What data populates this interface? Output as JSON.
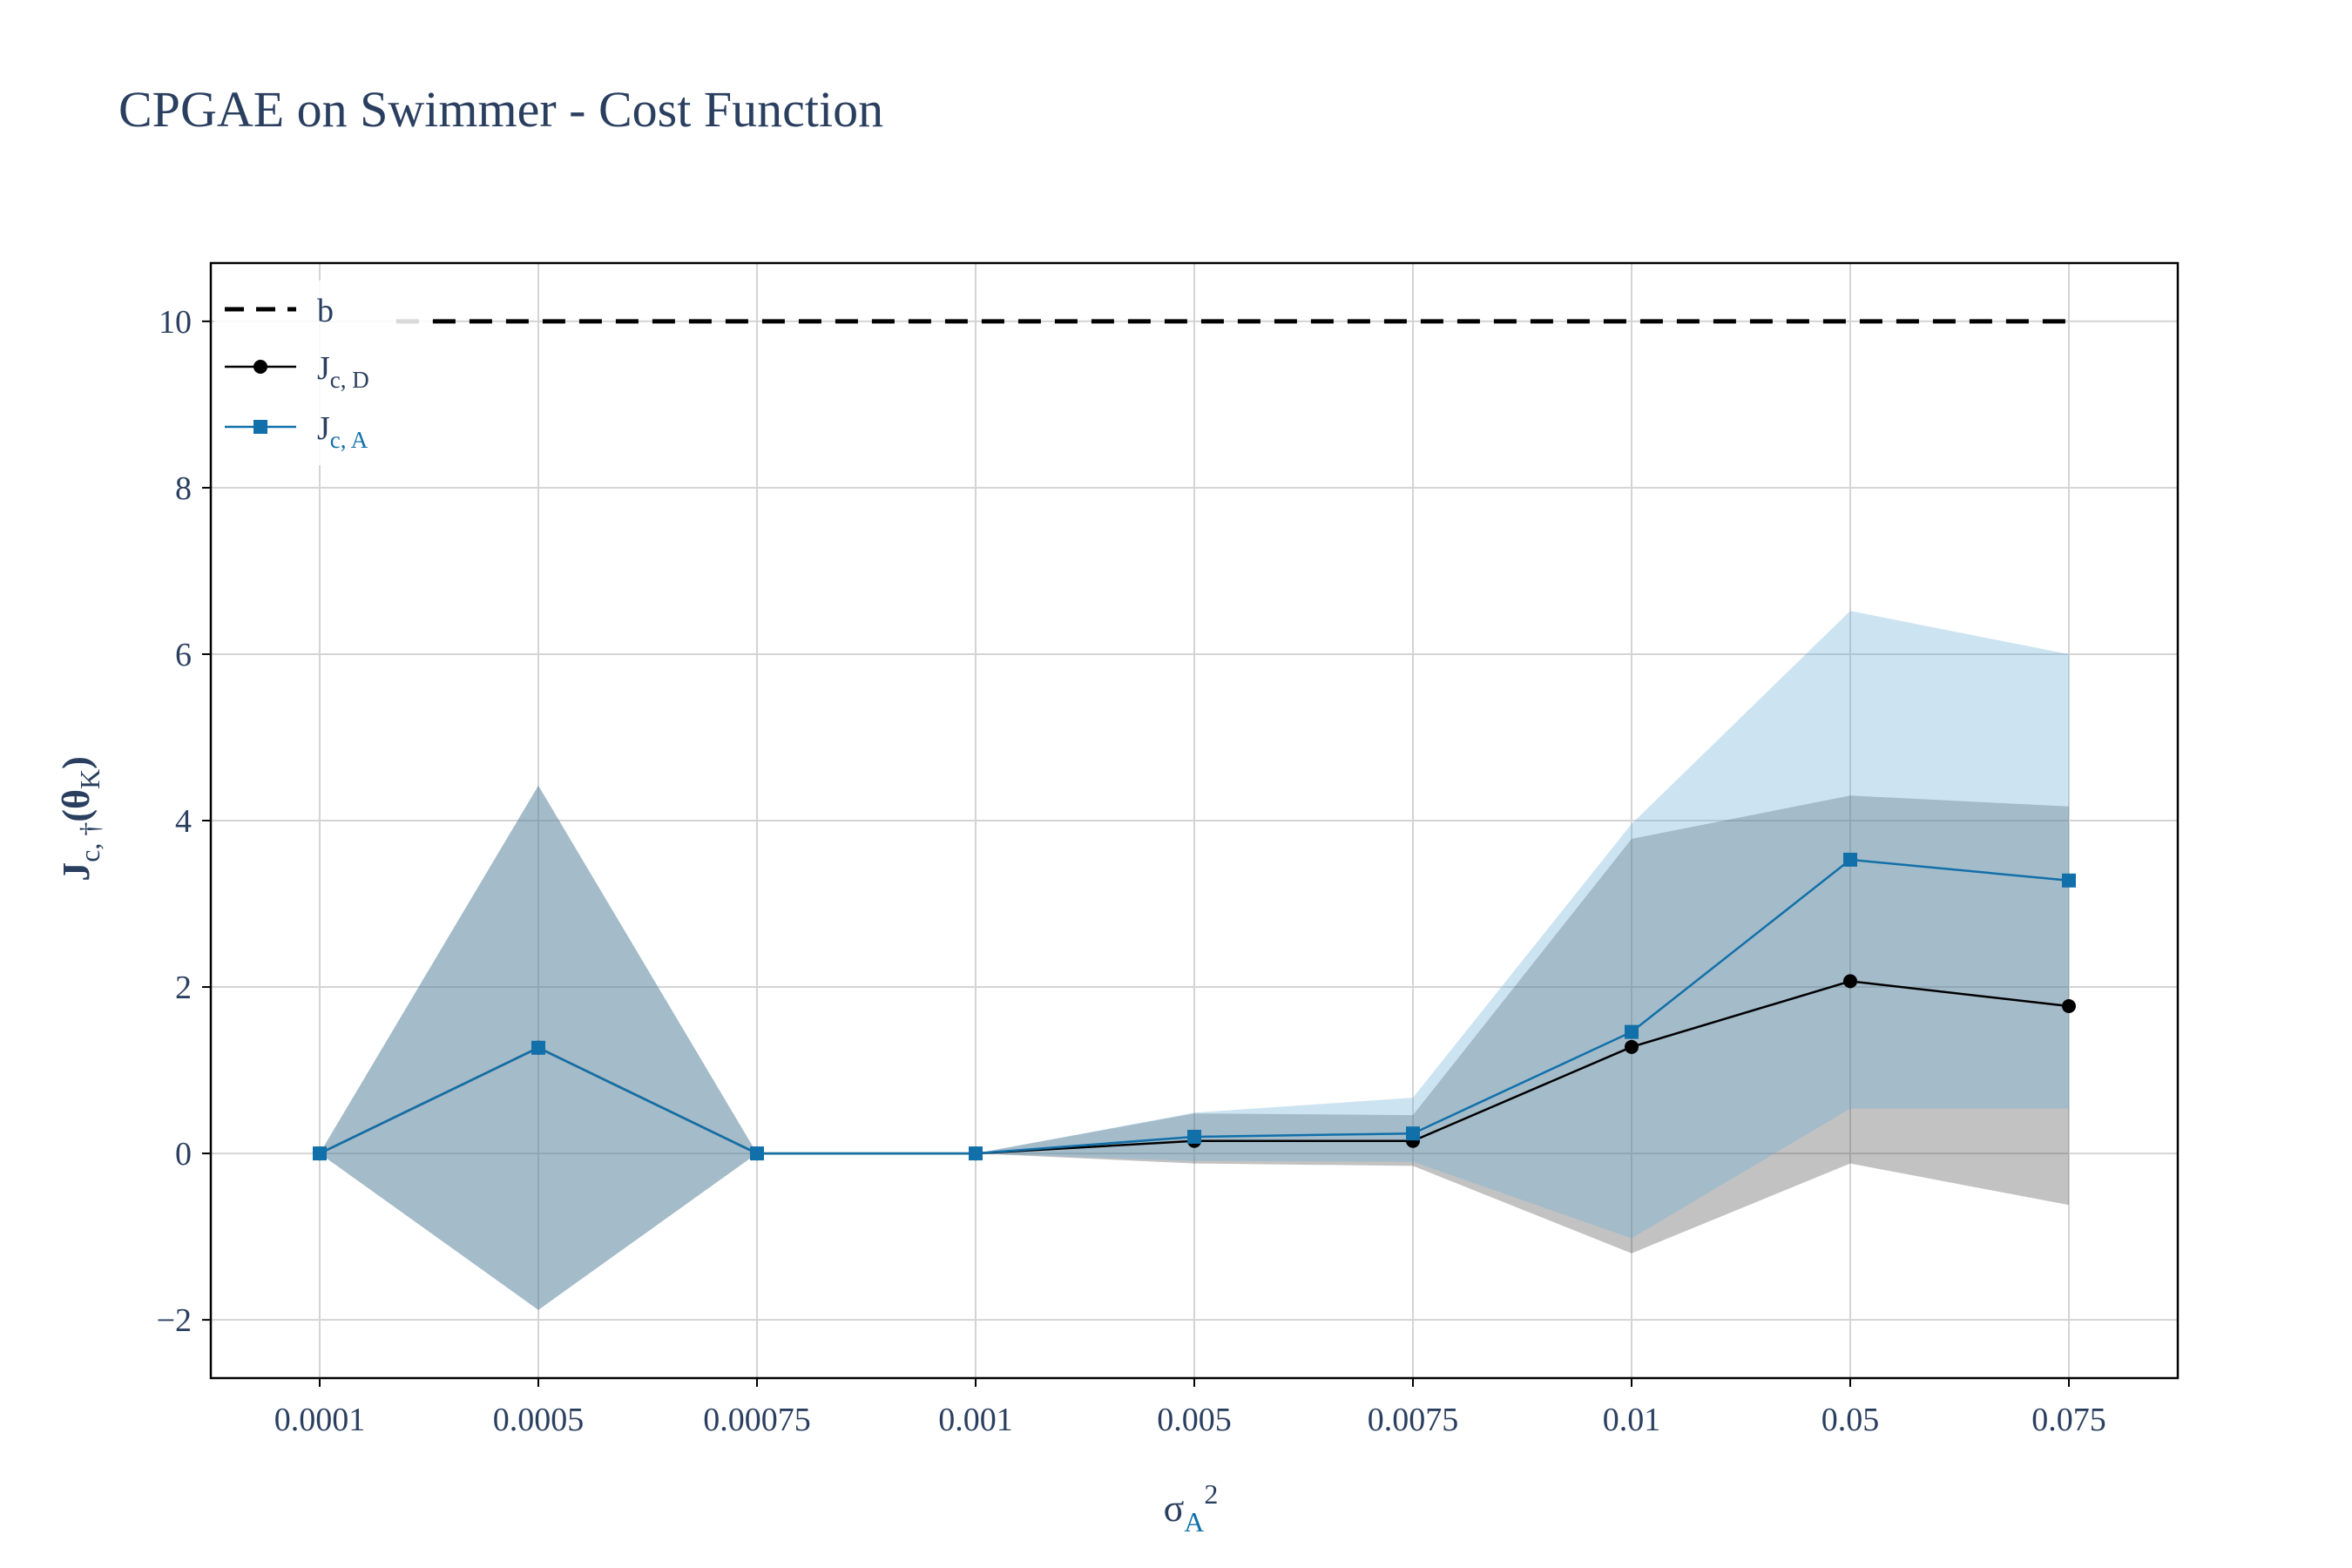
{
  "chart_data": {
    "type": "line",
    "title": "CPGAE on Swimmer - Cost Function",
    "xlabel": {
      "base": "σ",
      "sub": "A",
      "sup": "2"
    },
    "ylabel": {
      "base": "J",
      "sub": "c, †",
      "mid": "(θ",
      "sub2": "K",
      "end": ")"
    },
    "categories": [
      "0.0001",
      "0.0005",
      "0.00075",
      "0.001",
      "0.005",
      "0.0075",
      "0.01",
      "0.05",
      "0.075"
    ],
    "ylim": [
      -2.7,
      10.7
    ],
    "yticks": [
      -2,
      0,
      2,
      4,
      6,
      8,
      10
    ],
    "grid": true,
    "legend_position": "top-left",
    "series": [
      {
        "name": "b",
        "style": "dashed",
        "color": "#000000",
        "marker": "none",
        "values": [
          10,
          10,
          10,
          10,
          10,
          10,
          10,
          10,
          10
        ]
      },
      {
        "name_base": "J",
        "name_sub": "c, D",
        "style": "solid",
        "color": "#000000",
        "marker": "circle",
        "values": [
          0,
          1.27,
          0,
          0,
          0.15,
          0.15,
          1.28,
          2.07,
          1.77
        ],
        "band_upper": [
          0,
          4.42,
          0,
          0,
          0.48,
          0.46,
          3.78,
          4.3,
          4.17
        ],
        "band_lower": [
          0,
          -1.88,
          0,
          0,
          -0.12,
          -0.15,
          -1.2,
          -0.12,
          -0.62
        ],
        "band_color": "#4d4d4d"
      },
      {
        "name_base": "J",
        "name_sub": "c, A",
        "style": "solid",
        "color": "#1170aa",
        "marker": "square",
        "values": [
          0,
          1.27,
          0,
          0,
          0.2,
          0.24,
          1.46,
          3.53,
          3.28
        ],
        "band_upper": [
          0,
          4.42,
          0,
          0,
          0.49,
          0.67,
          3.96,
          6.52,
          6.0
        ],
        "band_lower": [
          0,
          -1.88,
          0,
          0,
          -0.09,
          -0.1,
          -1.02,
          0.54,
          0.54
        ],
        "band_color": "#6aaed6"
      }
    ]
  }
}
